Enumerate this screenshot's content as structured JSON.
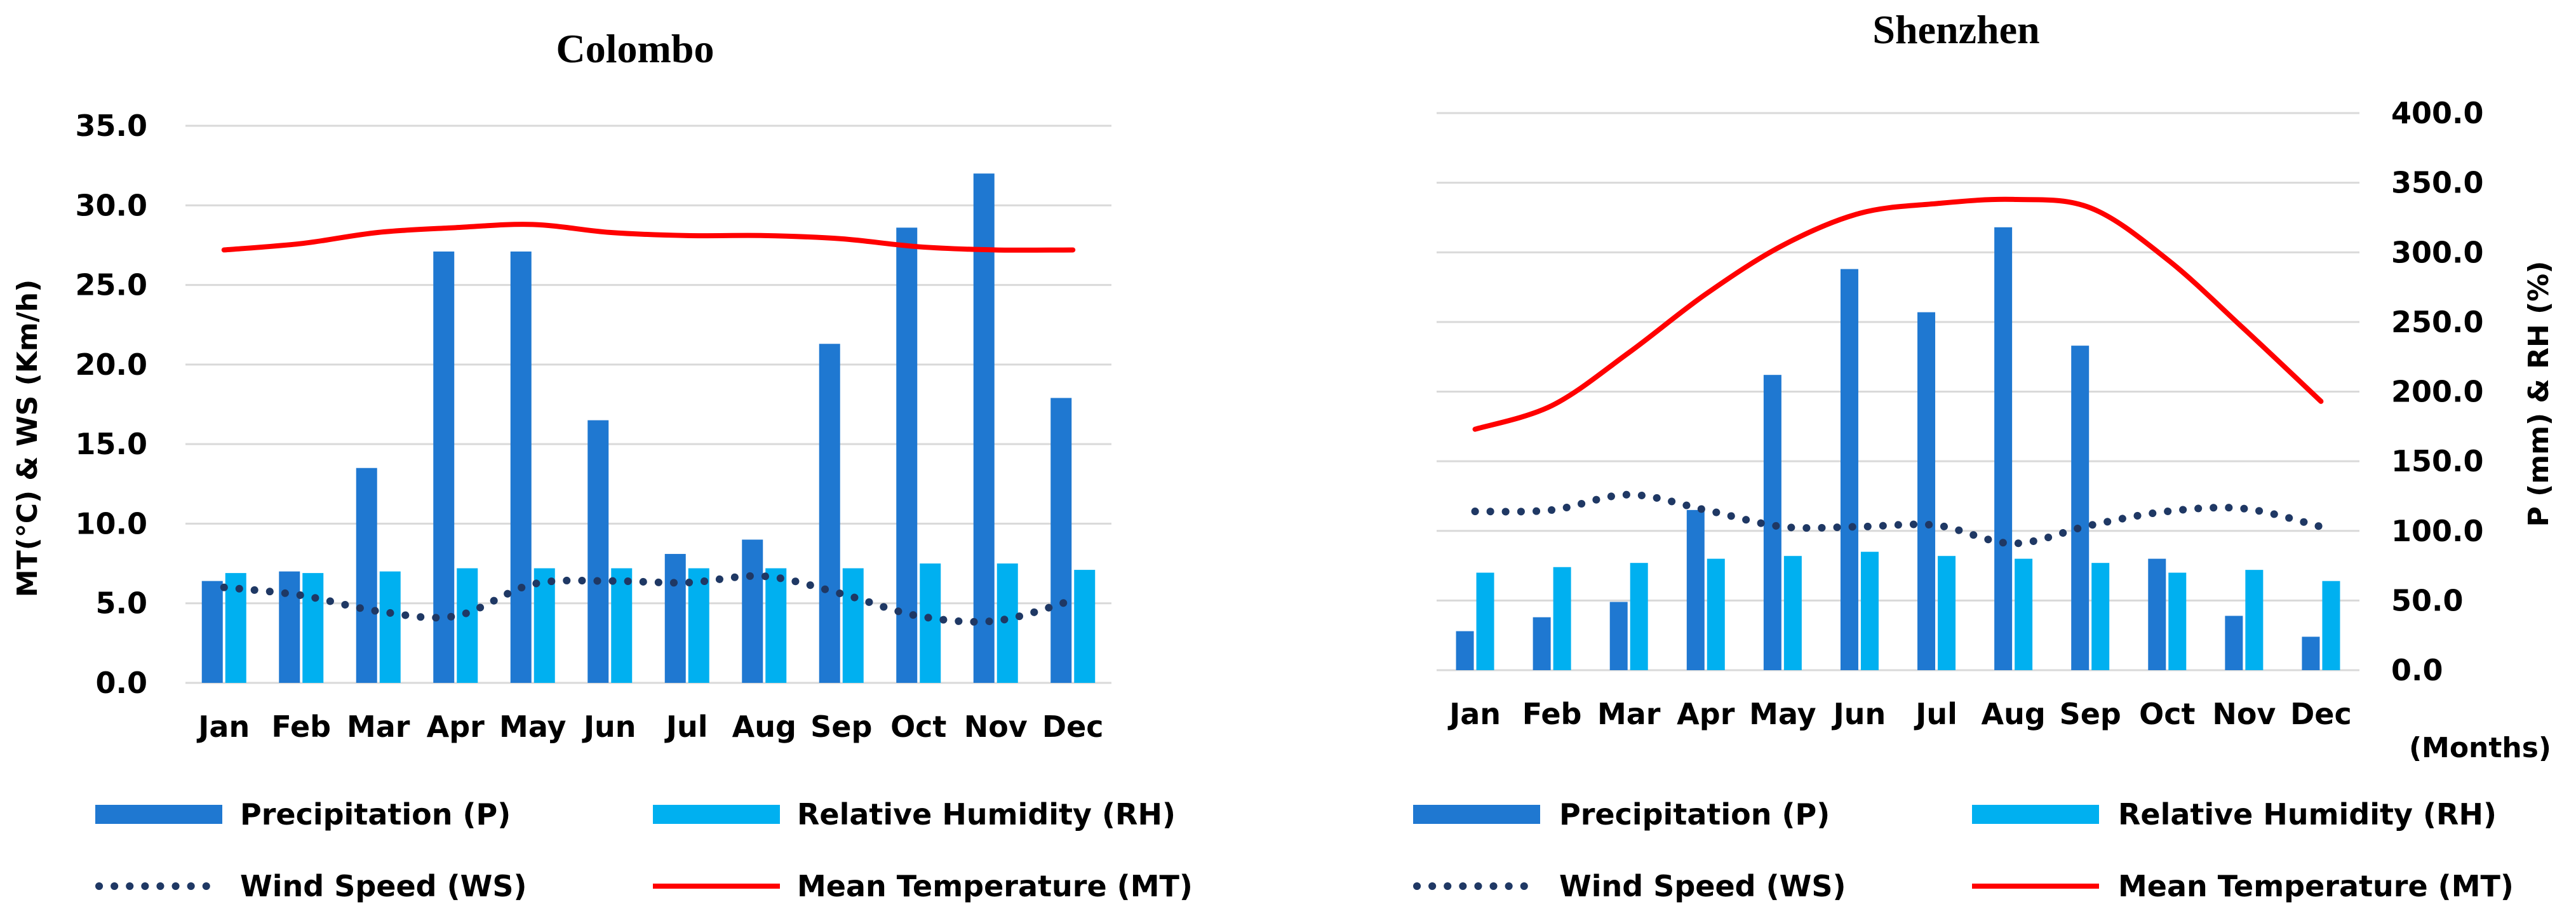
{
  "chart_data": [
    {
      "type": "bar",
      "title": "Colombo",
      "categories": [
        "Jan",
        "Feb",
        "Mar",
        "Apr",
        "May",
        "Jun",
        "Jul",
        "Aug",
        "Sep",
        "Oct",
        "Nov",
        "Dec"
      ],
      "ylabel": "MT(°C) & WS (Km/h)",
      "ylim": [
        0,
        35
      ],
      "yticks": [
        "0.0",
        "5.0",
        "10.0",
        "15.0",
        "20.0",
        "25.0",
        "30.0",
        "35.0"
      ],
      "grid": true,
      "legend_position": "bottom",
      "series": [
        {
          "name": "Precipitation (P)",
          "kind": "bar",
          "color": "#1f78d1",
          "values": [
            6.4,
            7.0,
            13.5,
            27.1,
            27.1,
            16.5,
            8.1,
            9.0,
            21.3,
            28.6,
            32.0,
            17.9
          ]
        },
        {
          "name": "Relative Humidity (RH)",
          "kind": "bar",
          "color": "#00b0f0",
          "values": [
            6.9,
            6.9,
            7.0,
            7.2,
            7.2,
            7.2,
            7.2,
            7.2,
            7.2,
            7.5,
            7.5,
            7.1
          ]
        },
        {
          "name": "Wind Speed (WS)",
          "kind": "dotted-line",
          "color": "#1f3864",
          "values": [
            6.0,
            5.5,
            4.5,
            4.2,
            6.2,
            6.4,
            6.3,
            6.7,
            5.6,
            4.2,
            3.9,
            5.2
          ]
        },
        {
          "name": "Mean Temperature (MT)",
          "kind": "line",
          "color": "#ff0000",
          "values": [
            27.2,
            27.6,
            28.3,
            28.6,
            28.8,
            28.3,
            28.1,
            28.1,
            27.9,
            27.4,
            27.2,
            27.2
          ]
        }
      ]
    },
    {
      "type": "bar",
      "title": "Shenzhen",
      "categories": [
        "Jan",
        "Feb",
        "Mar",
        "Apr",
        "May",
        "Jun",
        "Jul",
        "Aug",
        "Sep",
        "Oct",
        "Nov",
        "Dec"
      ],
      "xlabel": "(Months)",
      "ylabel": "P (mm) & RH (%)",
      "ylim": [
        0,
        400
      ],
      "yticks": [
        "0.0",
        "50.0",
        "100.0",
        "150.0",
        "200.0",
        "250.0",
        "300.0",
        "350.0",
        "400.0"
      ],
      "grid": true,
      "legend_position": "bottom",
      "series": [
        {
          "name": "Precipitation (P)",
          "kind": "bar",
          "color": "#1f78d1",
          "values": [
            28,
            38,
            49,
            115,
            212,
            288,
            257,
            318,
            233,
            80,
            39,
            24
          ]
        },
        {
          "name": "Relative Humidity (RH)",
          "kind": "bar",
          "color": "#00b0f0",
          "values": [
            70,
            74,
            77,
            80,
            82,
            85,
            82,
            80,
            77,
            70,
            72,
            64
          ]
        },
        {
          "name": "Wind Speed (WS)",
          "kind": "dotted-line",
          "color": "#1f3864",
          "values": [
            114,
            115,
            126,
            115,
            103,
            103,
            104,
            91,
            104,
            114,
            116,
            103
          ]
        },
        {
          "name": "Mean Temperature (MT)",
          "kind": "line",
          "color": "#ff0000",
          "values": [
            173,
            190,
            228,
            270,
            305,
            328,
            335,
            338,
            332,
            295,
            245,
            193
          ]
        }
      ]
    }
  ]
}
